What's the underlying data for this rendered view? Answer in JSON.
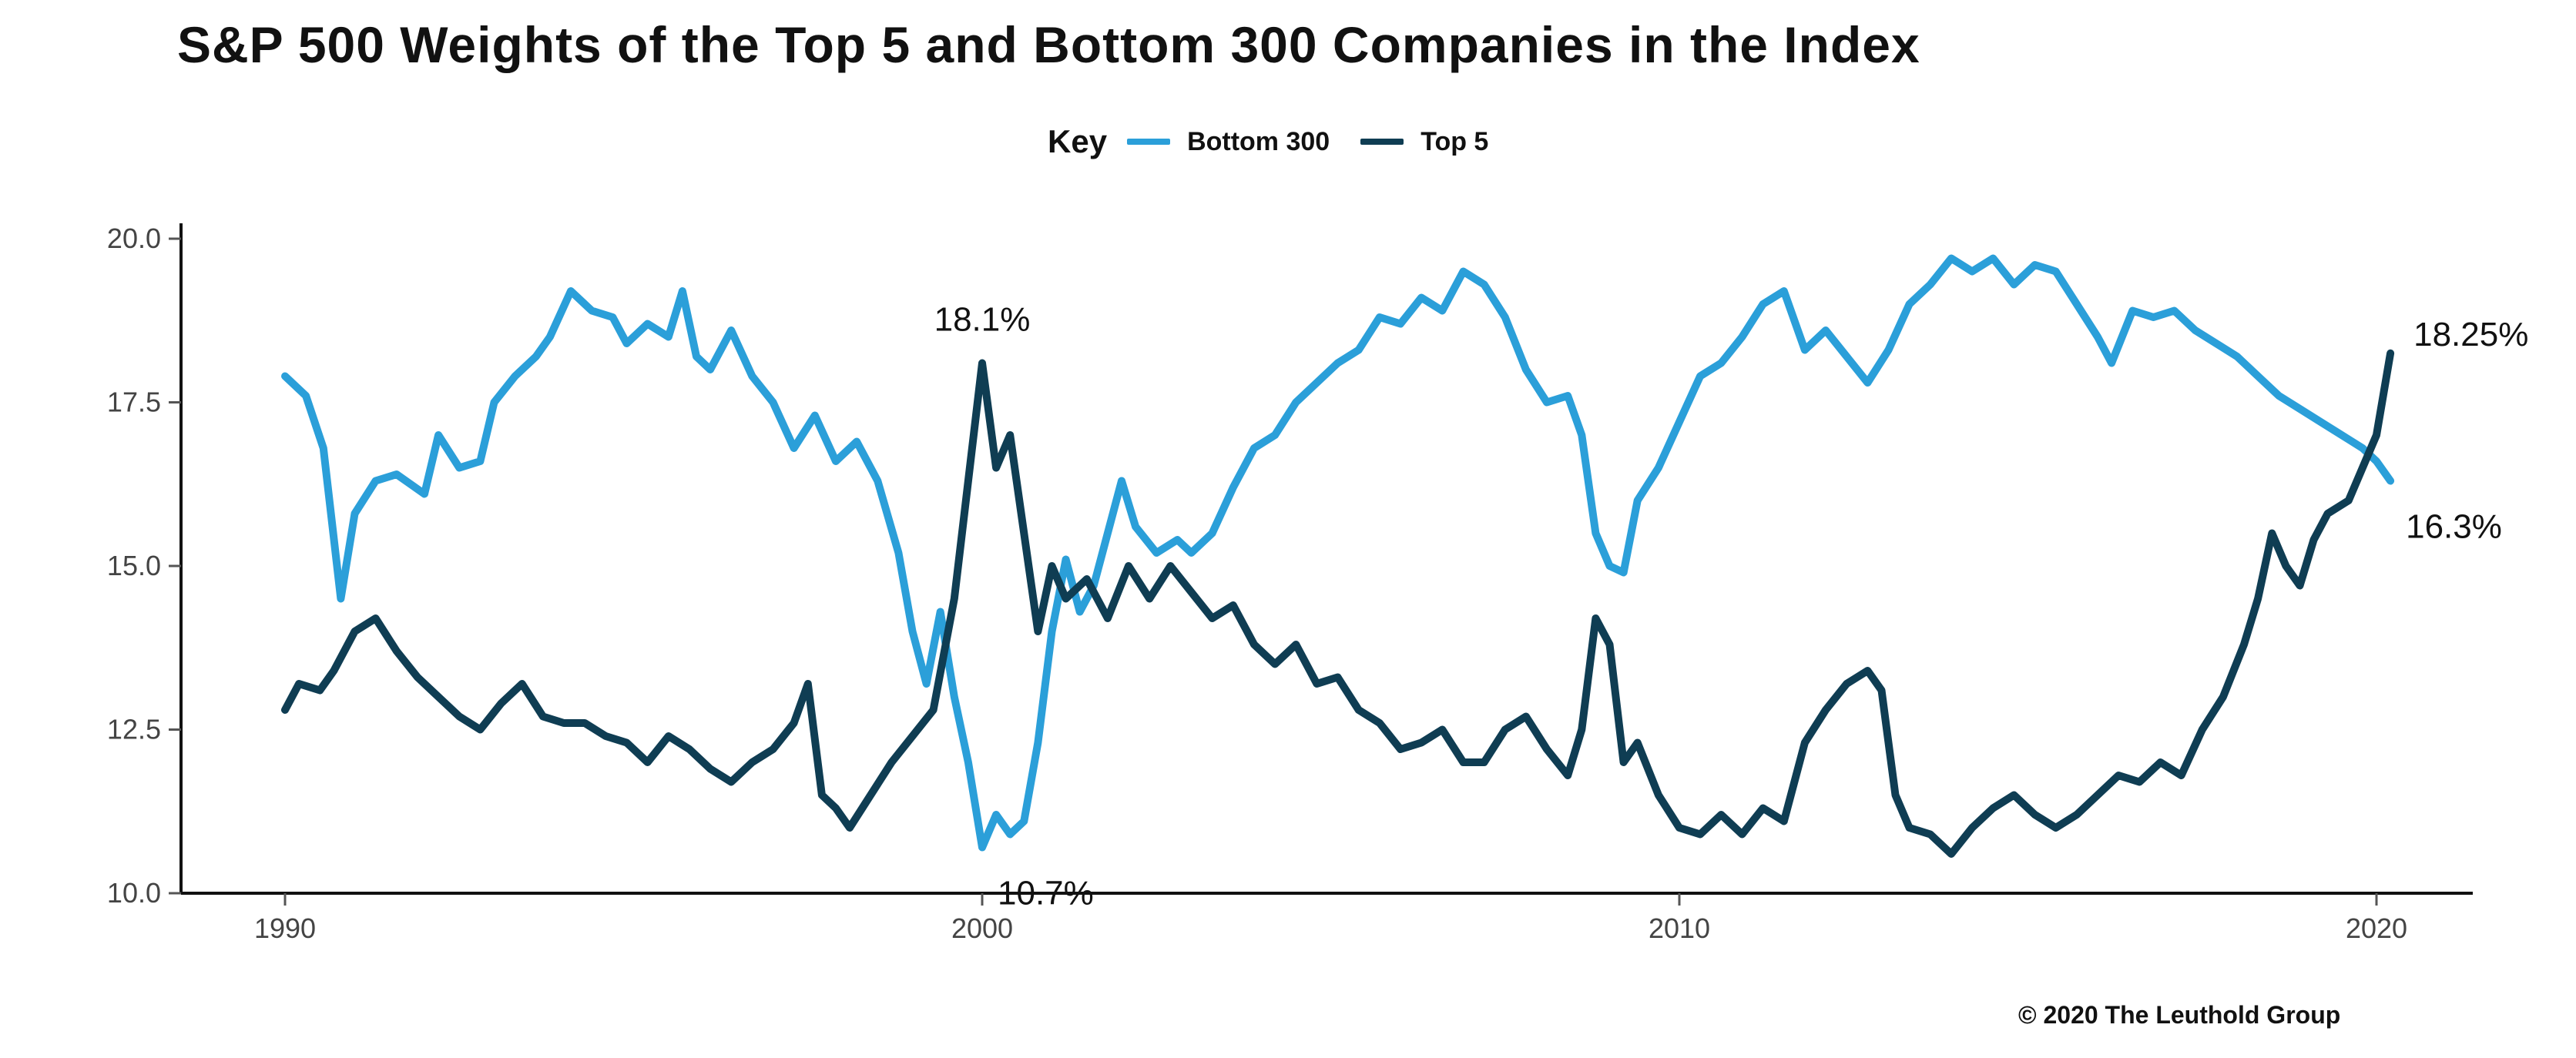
{
  "chart_data": {
    "type": "line",
    "title": "S&P 500 Weights of the Top 5 and Bottom 300 Companies in the Index",
    "legend": {
      "title": "Key",
      "position": "top-center"
    },
    "xlabel": "",
    "ylabel": "",
    "xlim": [
      1990,
      2020.3
    ],
    "ylim": [
      10,
      20
    ],
    "x_ticks": [
      1990,
      2000,
      2010,
      2020
    ],
    "x_tick_labels": [
      "1990",
      "2000",
      "2010",
      "2020"
    ],
    "y_ticks": [
      10,
      12.5,
      15,
      17.5,
      20
    ],
    "y_tick_labels": [
      "10.0",
      "12.5",
      "15.0",
      "17.5",
      "20.0"
    ],
    "grid": false,
    "series": [
      {
        "name": "Bottom 300",
        "color": "#2b9fd9",
        "points": [
          [
            1990.0,
            17.9
          ],
          [
            1990.3,
            17.6
          ],
          [
            1990.55,
            16.8
          ],
          [
            1990.8,
            14.5
          ],
          [
            1991.0,
            15.8
          ],
          [
            1991.3,
            16.3
          ],
          [
            1991.6,
            16.4
          ],
          [
            1992.0,
            16.1
          ],
          [
            1992.2,
            17.0
          ],
          [
            1992.5,
            16.5
          ],
          [
            1992.8,
            16.6
          ],
          [
            1993.0,
            17.5
          ],
          [
            1993.3,
            17.9
          ],
          [
            1993.6,
            18.2
          ],
          [
            1993.8,
            18.5
          ],
          [
            1994.1,
            19.2
          ],
          [
            1994.4,
            18.9
          ],
          [
            1994.7,
            18.8
          ],
          [
            1994.9,
            18.4
          ],
          [
            1995.2,
            18.7
          ],
          [
            1995.5,
            18.5
          ],
          [
            1995.7,
            19.2
          ],
          [
            1995.9,
            18.2
          ],
          [
            1996.1,
            18.0
          ],
          [
            1996.4,
            18.6
          ],
          [
            1996.7,
            17.9
          ],
          [
            1997.0,
            17.5
          ],
          [
            1997.3,
            16.8
          ],
          [
            1997.6,
            17.3
          ],
          [
            1997.9,
            16.6
          ],
          [
            1998.2,
            16.9
          ],
          [
            1998.5,
            16.3
          ],
          [
            1998.8,
            15.2
          ],
          [
            1999.0,
            14.0
          ],
          [
            1999.2,
            13.2
          ],
          [
            1999.4,
            14.3
          ],
          [
            1999.6,
            13.0
          ],
          [
            1999.8,
            12.0
          ],
          [
            2000.0,
            10.7
          ],
          [
            2000.2,
            11.2
          ],
          [
            2000.4,
            10.9
          ],
          [
            2000.6,
            11.1
          ],
          [
            2000.8,
            12.3
          ],
          [
            2001.0,
            14.0
          ],
          [
            2001.2,
            15.1
          ],
          [
            2001.4,
            14.3
          ],
          [
            2001.6,
            14.7
          ],
          [
            2001.8,
            15.5
          ],
          [
            2002.0,
            16.3
          ],
          [
            2002.2,
            15.6
          ],
          [
            2002.5,
            15.2
          ],
          [
            2002.8,
            15.4
          ],
          [
            2003.0,
            15.2
          ],
          [
            2003.3,
            15.5
          ],
          [
            2003.6,
            16.2
          ],
          [
            2003.9,
            16.8
          ],
          [
            2004.2,
            17.0
          ],
          [
            2004.5,
            17.5
          ],
          [
            2004.8,
            17.8
          ],
          [
            2005.1,
            18.1
          ],
          [
            2005.4,
            18.3
          ],
          [
            2005.7,
            18.8
          ],
          [
            2006.0,
            18.7
          ],
          [
            2006.3,
            19.1
          ],
          [
            2006.6,
            18.9
          ],
          [
            2006.9,
            19.5
          ],
          [
            2007.2,
            19.3
          ],
          [
            2007.5,
            18.8
          ],
          [
            2007.8,
            18.0
          ],
          [
            2008.1,
            17.5
          ],
          [
            2008.4,
            17.6
          ],
          [
            2008.6,
            17.0
          ],
          [
            2008.8,
            15.5
          ],
          [
            2009.0,
            15.0
          ],
          [
            2009.2,
            14.9
          ],
          [
            2009.4,
            16.0
          ],
          [
            2009.7,
            16.5
          ],
          [
            2010.0,
            17.2
          ],
          [
            2010.3,
            17.9
          ],
          [
            2010.6,
            18.1
          ],
          [
            2010.9,
            18.5
          ],
          [
            2011.2,
            19.0
          ],
          [
            2011.5,
            19.2
          ],
          [
            2011.8,
            18.3
          ],
          [
            2012.1,
            18.6
          ],
          [
            2012.4,
            18.2
          ],
          [
            2012.7,
            17.8
          ],
          [
            2013.0,
            18.3
          ],
          [
            2013.3,
            19.0
          ],
          [
            2013.6,
            19.3
          ],
          [
            2013.9,
            19.7
          ],
          [
            2014.2,
            19.5
          ],
          [
            2014.5,
            19.7
          ],
          [
            2014.8,
            19.3
          ],
          [
            2015.1,
            19.6
          ],
          [
            2015.4,
            19.5
          ],
          [
            2015.7,
            19.0
          ],
          [
            2016.0,
            18.5
          ],
          [
            2016.2,
            18.1
          ],
          [
            2016.5,
            18.9
          ],
          [
            2016.8,
            18.8
          ],
          [
            2017.1,
            18.9
          ],
          [
            2017.4,
            18.6
          ],
          [
            2017.7,
            18.4
          ],
          [
            2018.0,
            18.2
          ],
          [
            2018.3,
            17.9
          ],
          [
            2018.6,
            17.6
          ],
          [
            2018.9,
            17.4
          ],
          [
            2019.2,
            17.2
          ],
          [
            2019.5,
            17.0
          ],
          [
            2019.8,
            16.8
          ],
          [
            2020.0,
            16.6
          ],
          [
            2020.2,
            16.3
          ]
        ]
      },
      {
        "name": "Top 5",
        "color": "#0f3d53",
        "points": [
          [
            1990.0,
            12.8
          ],
          [
            1990.2,
            13.2
          ],
          [
            1990.5,
            13.1
          ],
          [
            1990.7,
            13.4
          ],
          [
            1991.0,
            14.0
          ],
          [
            1991.3,
            14.2
          ],
          [
            1991.6,
            13.7
          ],
          [
            1991.9,
            13.3
          ],
          [
            1992.2,
            13.0
          ],
          [
            1992.5,
            12.7
          ],
          [
            1992.8,
            12.5
          ],
          [
            1993.1,
            12.9
          ],
          [
            1993.4,
            13.2
          ],
          [
            1993.7,
            12.7
          ],
          [
            1994.0,
            12.6
          ],
          [
            1994.3,
            12.6
          ],
          [
            1994.6,
            12.4
          ],
          [
            1994.9,
            12.3
          ],
          [
            1995.2,
            12.0
          ],
          [
            1995.5,
            12.4
          ],
          [
            1995.8,
            12.2
          ],
          [
            1996.1,
            11.9
          ],
          [
            1996.4,
            11.7
          ],
          [
            1996.7,
            12.0
          ],
          [
            1997.0,
            12.2
          ],
          [
            1997.3,
            12.6
          ],
          [
            1997.5,
            13.2
          ],
          [
            1997.7,
            11.5
          ],
          [
            1997.9,
            11.3
          ],
          [
            1998.1,
            11.0
          ],
          [
            1998.4,
            11.5
          ],
          [
            1998.7,
            12.0
          ],
          [
            1999.0,
            12.4
          ],
          [
            1999.3,
            12.8
          ],
          [
            1999.6,
            14.5
          ],
          [
            1999.8,
            16.3
          ],
          [
            2000.0,
            18.1
          ],
          [
            2000.2,
            16.5
          ],
          [
            2000.4,
            17.0
          ],
          [
            2000.6,
            15.5
          ],
          [
            2000.8,
            14.0
          ],
          [
            2001.0,
            15.0
          ],
          [
            2001.2,
            14.5
          ],
          [
            2001.5,
            14.8
          ],
          [
            2001.8,
            14.2
          ],
          [
            2002.1,
            15.0
          ],
          [
            2002.4,
            14.5
          ],
          [
            2002.7,
            15.0
          ],
          [
            2003.0,
            14.6
          ],
          [
            2003.3,
            14.2
          ],
          [
            2003.6,
            14.4
          ],
          [
            2003.9,
            13.8
          ],
          [
            2004.2,
            13.5
          ],
          [
            2004.5,
            13.8
          ],
          [
            2004.8,
            13.2
          ],
          [
            2005.1,
            13.3
          ],
          [
            2005.4,
            12.8
          ],
          [
            2005.7,
            12.6
          ],
          [
            2006.0,
            12.2
          ],
          [
            2006.3,
            12.3
          ],
          [
            2006.6,
            12.5
          ],
          [
            2006.9,
            12.0
          ],
          [
            2007.2,
            12.0
          ],
          [
            2007.5,
            12.5
          ],
          [
            2007.8,
            12.7
          ],
          [
            2008.1,
            12.2
          ],
          [
            2008.4,
            11.8
          ],
          [
            2008.6,
            12.5
          ],
          [
            2008.8,
            14.2
          ],
          [
            2009.0,
            13.8
          ],
          [
            2009.2,
            12.0
          ],
          [
            2009.4,
            12.3
          ],
          [
            2009.7,
            11.5
          ],
          [
            2010.0,
            11.0
          ],
          [
            2010.3,
            10.9
          ],
          [
            2010.6,
            11.2
          ],
          [
            2010.9,
            10.9
          ],
          [
            2011.2,
            11.3
          ],
          [
            2011.5,
            11.1
          ],
          [
            2011.8,
            12.3
          ],
          [
            2012.1,
            12.8
          ],
          [
            2012.4,
            13.2
          ],
          [
            2012.7,
            13.4
          ],
          [
            2012.9,
            13.1
          ],
          [
            2013.1,
            11.5
          ],
          [
            2013.3,
            11.0
          ],
          [
            2013.6,
            10.9
          ],
          [
            2013.9,
            10.6
          ],
          [
            2014.2,
            11.0
          ],
          [
            2014.5,
            11.3
          ],
          [
            2014.8,
            11.5
          ],
          [
            2015.1,
            11.2
          ],
          [
            2015.4,
            11.0
          ],
          [
            2015.7,
            11.2
          ],
          [
            2016.0,
            11.5
          ],
          [
            2016.3,
            11.8
          ],
          [
            2016.6,
            11.7
          ],
          [
            2016.9,
            12.0
          ],
          [
            2017.2,
            11.8
          ],
          [
            2017.5,
            12.5
          ],
          [
            2017.8,
            13.0
          ],
          [
            2018.1,
            13.8
          ],
          [
            2018.3,
            14.5
          ],
          [
            2018.5,
            15.5
          ],
          [
            2018.7,
            15.0
          ],
          [
            2018.9,
            14.7
          ],
          [
            2019.1,
            15.4
          ],
          [
            2019.3,
            15.8
          ],
          [
            2019.6,
            16.0
          ],
          [
            2019.8,
            16.5
          ],
          [
            2020.0,
            17.0
          ],
          [
            2020.2,
            18.25
          ]
        ]
      }
    ],
    "annotations": [
      {
        "text": "18.1%",
        "x": 2000.0,
        "y": 18.1,
        "placement": "above"
      },
      {
        "text": "10.7%",
        "x": 2000.0,
        "y": 10.7,
        "placement": "below-right"
      },
      {
        "text": "18.25%",
        "x": 2020.2,
        "y": 18.25,
        "placement": "right"
      },
      {
        "text": "16.3%",
        "x": 2020.2,
        "y": 16.3,
        "placement": "below-right"
      }
    ]
  },
  "legend_labels": {
    "key": "Key",
    "bottom300": "Bottom 300",
    "top5": "Top 5"
  },
  "copyright": "© 2020 The Leuthold Group"
}
